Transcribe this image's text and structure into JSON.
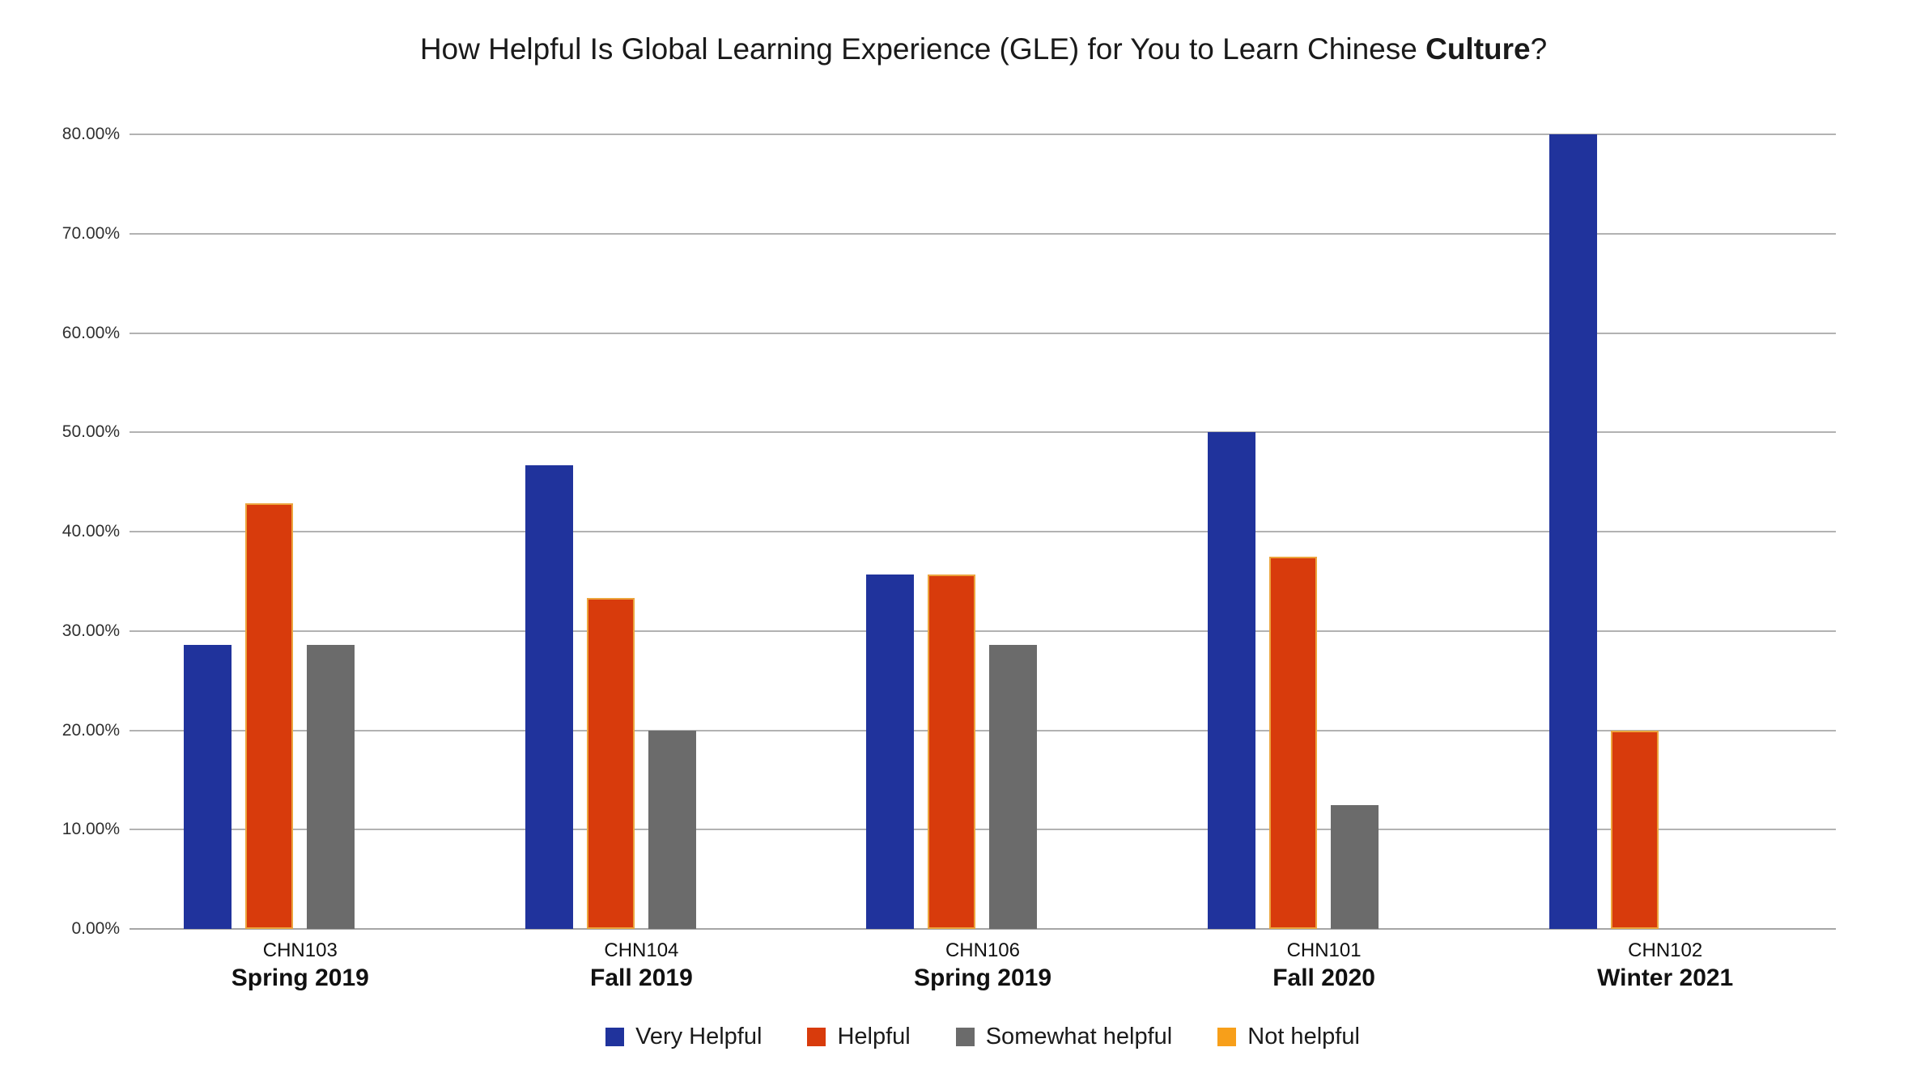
{
  "title": {
    "prefix": "How Helpful Is Global Learning Experience (GLE) for You to Learn Chinese ",
    "bold": "Culture",
    "suffix": "?"
  },
  "chart_data": {
    "type": "bar",
    "title": "How Helpful Is Global Learning Experience (GLE) for You to Learn Chinese Culture?",
    "categories": [
      {
        "course": "CHN103",
        "term": "Spring 2019"
      },
      {
        "course": "CHN104",
        "term": "Fall 2019"
      },
      {
        "course": "CHN106",
        "term": "Spring 2019"
      },
      {
        "course": "CHN101",
        "term": "Fall 2020"
      },
      {
        "course": "CHN102",
        "term": "Winter 2021"
      }
    ],
    "series": [
      {
        "name": "Very Helpful",
        "color": "#20339c",
        "border": "",
        "values": [
          28.57,
          46.67,
          35.71,
          50.0,
          80.0
        ]
      },
      {
        "name": "Helpful",
        "color": "#d83b0c",
        "border": "#eca43d",
        "values": [
          42.86,
          33.33,
          35.71,
          37.5,
          20.0
        ]
      },
      {
        "name": "Somewhat helpful",
        "color": "#6b6b6b",
        "border": "",
        "values": [
          28.57,
          20.0,
          28.57,
          12.5,
          0.0
        ]
      },
      {
        "name": "Not helpful",
        "color": "#f79f1a",
        "border": "",
        "values": [
          0.0,
          0.0,
          0.0,
          0.0,
          0.0
        ]
      }
    ],
    "ylabel": "",
    "xlabel": "",
    "ylim": [
      0,
      80
    ],
    "ytick_step": 10,
    "yticks": [
      "0.00%",
      "10.00%",
      "20.00%",
      "30.00%",
      "40.00%",
      "50.00%",
      "60.00%",
      "70.00%",
      "80.00%"
    ],
    "grid": true,
    "legend_position": "bottom"
  },
  "colors": {
    "background": "#ffffff",
    "gridline": "#b2b2b2",
    "axis_text": "#303030",
    "label_text": "#111111"
  }
}
